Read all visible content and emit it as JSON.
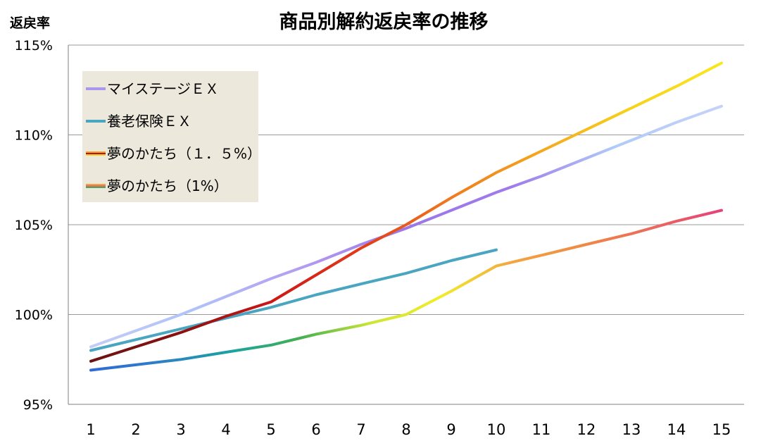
{
  "chart_data": {
    "type": "line",
    "title": "商品別解約返戻率の推移",
    "ylabel": "返戻率",
    "xlabel": "",
    "x": [
      1,
      2,
      3,
      4,
      5,
      6,
      7,
      8,
      9,
      10,
      11,
      12,
      13,
      14,
      15
    ],
    "xticks": [
      "1",
      "2",
      "3",
      "4",
      "5",
      "6",
      "7",
      "8",
      "9",
      "10",
      "11",
      "12",
      "13",
      "14",
      "15"
    ],
    "ylim": [
      95,
      115
    ],
    "yticks": [
      95,
      100,
      105,
      110,
      115
    ],
    "ytick_labels": [
      "95%",
      "100%",
      "105%",
      "110%",
      "115%"
    ],
    "grid": true,
    "legend_position": "top-left",
    "series": [
      {
        "name": "マイステージＥＸ",
        "x": [
          1,
          2,
          3,
          4,
          5,
          6,
          7,
          8,
          9,
          10,
          11,
          12,
          13,
          14,
          15
        ],
        "values": [
          98.2,
          99.1,
          100.0,
          101.0,
          102.0,
          102.9,
          103.9,
          104.8,
          105.8,
          106.8,
          107.7,
          108.7,
          109.7,
          110.7,
          111.6
        ],
        "gradient": [
          "#c3cdf5",
          "#b0c2f8",
          "#b49cf0",
          "#9a78ea",
          "#a07aea",
          "#b0ccf8",
          "#c5d2f8"
        ]
      },
      {
        "name": "養老保険ＥＸ",
        "x": [
          1,
          2,
          3,
          4,
          5,
          6,
          7,
          8,
          9,
          10
        ],
        "values": [
          98.0,
          98.6,
          99.2,
          99.8,
          100.4,
          101.1,
          101.7,
          102.3,
          103.0,
          103.6
        ],
        "gradient": [
          "#4aa5c0",
          "#4aa5c0"
        ]
      },
      {
        "name": "夢のかたち（１．５%）",
        "x": [
          1,
          2,
          3,
          4,
          5,
          6,
          7,
          8,
          9,
          10,
          11,
          12,
          13,
          14,
          15
        ],
        "values": [
          97.4,
          98.2,
          99.0,
          99.9,
          100.7,
          102.2,
          103.7,
          105.0,
          106.5,
          107.9,
          109.1,
          110.3,
          111.5,
          112.7,
          114.0
        ],
        "gradient": [
          "#6b1212",
          "#8a1111",
          "#cc1717",
          "#e33a1a",
          "#f07a1e",
          "#f4a81e",
          "#f7d21c",
          "#f8e81c"
        ]
      },
      {
        "name": "夢のかたち（1%）",
        "x": [
          1,
          2,
          3,
          4,
          5,
          6,
          7,
          8,
          9,
          10,
          11,
          12,
          13,
          14,
          15
        ],
        "values": [
          96.9,
          97.2,
          97.5,
          97.9,
          98.3,
          98.9,
          99.4,
          100.0,
          101.3,
          102.7,
          103.3,
          103.9,
          104.5,
          105.2,
          105.8
        ],
        "gradient": [
          "#2f6bd6",
          "#2e7fc6",
          "#1aa3a0",
          "#44b050",
          "#cde636",
          "#f1ec2a",
          "#f2a640",
          "#f08a44",
          "#ea6a5c",
          "#e8407a"
        ]
      }
    ]
  }
}
